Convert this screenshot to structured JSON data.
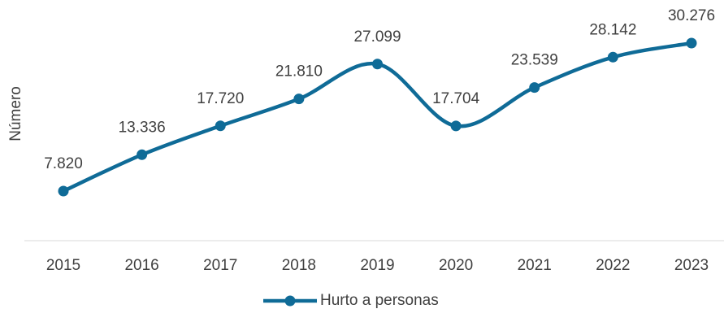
{
  "chart_data": {
    "type": "line",
    "ylabel": "Número",
    "categories": [
      "2015",
      "2016",
      "2017",
      "2018",
      "2019",
      "2020",
      "2021",
      "2022",
      "2023"
    ],
    "series": [
      {
        "name": "Hurto a personas",
        "color": "#0f6b97",
        "values": [
          7820,
          13336,
          17720,
          21810,
          27099,
          17704,
          23539,
          28142,
          30276
        ],
        "value_labels": [
          "7.820",
          "13.336",
          "17.720",
          "21.810",
          "27.099",
          "17.704",
          "23.539",
          "28.142",
          "30.276"
        ]
      }
    ],
    "ylim": [
      0,
      35000
    ],
    "legend": "bottom",
    "smooth": true
  }
}
